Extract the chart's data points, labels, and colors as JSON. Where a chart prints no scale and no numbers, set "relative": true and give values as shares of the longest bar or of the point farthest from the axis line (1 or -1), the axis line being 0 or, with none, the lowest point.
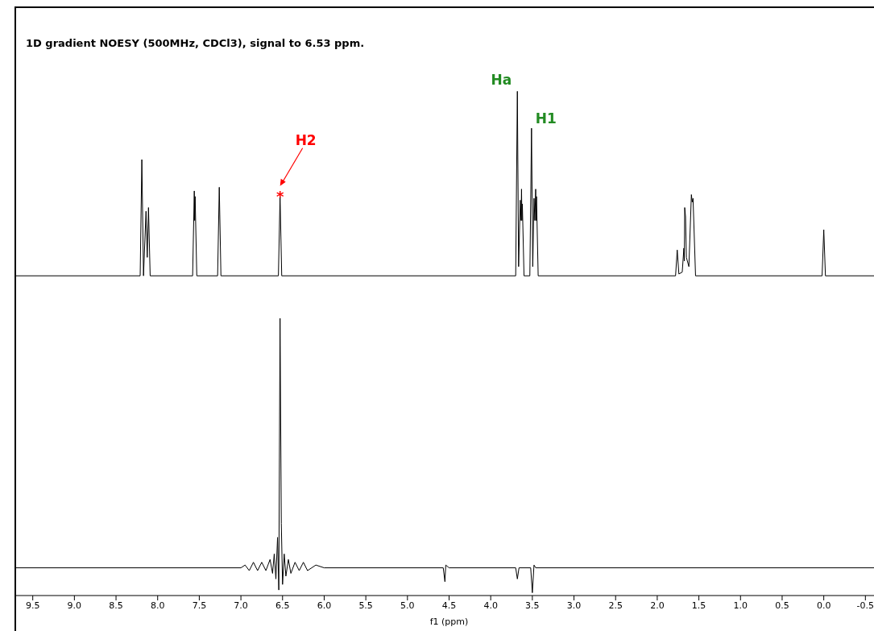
{
  "chart_data": [
    {
      "type": "line",
      "title": "1D gradient NOESY (500MHz, CDCl3), signal to 6.53 ppm.",
      "relative": true,
      "xlim": [
        9.7,
        -0.7
      ],
      "tick_labels": false,
      "marker": "none",
      "line_style": "solid",
      "grid": false,
      "legend": false,
      "annotations": [
        {
          "text": "*",
          "x": 6.53,
          "y": 0.43
        },
        "H2",
        {
          "text": "Ha",
          "x": 3.68,
          "y": 1
        },
        {
          "text": "H1",
          "x": 3.51,
          "y": 0.8
        }
      ],
      "series": [
        {
          "color": "#000000",
          "x": [
            9.7,
            8.21,
            8.19,
            8.17,
            8.14,
            8.125,
            8.11,
            8.09,
            7.58,
            7.56,
            7.555,
            7.55,
            7.53,
            7.28,
            7.26,
            7.24,
            6.55,
            6.53,
            6.51,
            3.7,
            3.68,
            3.665,
            3.645,
            3.635,
            3.63,
            3.625,
            3.62,
            3.6,
            3.53,
            3.51,
            3.495,
            3.48,
            3.47,
            3.46,
            3.455,
            3.45,
            3.43,
            1.78,
            1.76,
            1.74,
            1.7,
            1.68,
            1.675,
            1.67,
            1.66,
            1.65,
            1.62,
            1.59,
            1.58,
            1.57,
            1.54,
            0.02,
            0,
            -0.02,
            -0.7
          ],
          "values": [
            0,
            0,
            0.63,
            0,
            0.35,
            0.1,
            0.37,
            0,
            0,
            0.46,
            0.3,
            0.43,
            0,
            0,
            0.48,
            0,
            0,
            0.43,
            0,
            0,
            1,
            0.05,
            0.41,
            0.3,
            0.47,
            0.3,
            0.39,
            0,
            0,
            0.8,
            0.05,
            0.42,
            0.3,
            0.47,
            0.3,
            0.43,
            0,
            0,
            0.14,
            0.01,
            0.02,
            0.15,
            0.08,
            0.37,
            0.32,
            0.1,
            0.05,
            0.44,
            0.4,
            0.42,
            0,
            0,
            0.25,
            0,
            0
          ]
        }
      ]
    },
    {
      "type": "line",
      "relative": true,
      "xlabel": "f1 (ppm)",
      "xlim": [
        9.7,
        -0.7
      ],
      "xticks": [
        9.5,
        {
          "value": 9,
          "label": "9.0"
        },
        8.5,
        {
          "value": 8,
          "label": "8.0"
        },
        7.5,
        {
          "value": 7,
          "label": "7.0"
        },
        6.5,
        {
          "value": 6,
          "label": "6.0"
        },
        5.5,
        {
          "value": 5,
          "label": "5.0"
        },
        4.5,
        {
          "value": 4,
          "label": "4.0"
        },
        3.5,
        {
          "value": 3,
          "label": "3.0"
        },
        2.5,
        {
          "value": 2,
          "label": "2.0"
        },
        1.5,
        {
          "value": 1,
          "label": "1.0"
        },
        0.5,
        {
          "value": 0,
          "label": "0.0"
        },
        -0.5
      ],
      "marker": "none",
      "line_style": "solid",
      "grid": false,
      "legend": false,
      "series": [
        {
          "color": "#000000",
          "x": [
            9.7,
            7,
            6.95,
            6.9,
            6.85,
            6.8,
            6.75,
            6.7,
            6.65,
            6.62,
            6.6,
            6.58,
            6.56,
            6.545,
            6.53,
            6.515,
            6.5,
            6.48,
            6.46,
            6.43,
            6.4,
            6.35,
            6.3,
            6.25,
            6.2,
            6.1,
            6,
            4.57,
            4.55,
            4.54,
            4.5,
            3.7,
            3.68,
            3.66,
            3.52,
            3.5,
            3.48,
            3.46,
            -0.7
          ],
          "values": [
            0.1,
            0.1,
            0.11,
            0.09,
            0.12,
            0.09,
            0.12,
            0.09,
            0.13,
            0.08,
            0.15,
            0.06,
            0.21,
            0.02,
            1,
            0.26,
            0.04,
            0.15,
            0.07,
            0.13,
            0.08,
            0.12,
            0.09,
            0.12,
            0.09,
            0.11,
            0.1,
            0.1,
            0.05,
            0.11,
            0.1,
            0.1,
            0.06,
            0.1,
            0.1,
            0.01,
            0.11,
            0.1,
            0.1
          ]
        }
      ]
    }
  ]
}
